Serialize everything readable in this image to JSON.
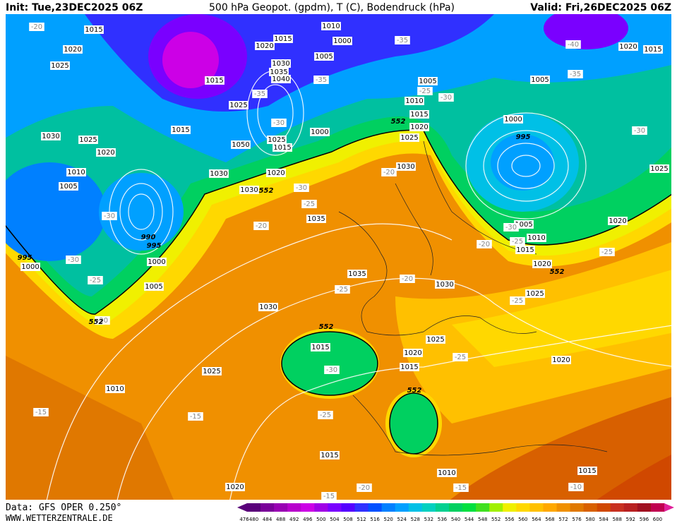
{
  "header": {
    "init": "Init: Tue,23DEC2025 06Z",
    "title": "500 hPa Geopot. (gpdm), T (C), Bodendruck (hPa)",
    "valid": "Valid: Fri,26DEC2025 06Z"
  },
  "footer": {
    "data": "Data: GFS OPER 0.250°",
    "site": "WWW.WETTERZENTRALE.DE"
  },
  "colorbar": {
    "ticks": [
      476,
      480,
      484,
      488,
      492,
      496,
      500,
      504,
      508,
      512,
      516,
      520,
      524,
      528,
      532,
      536,
      540,
      544,
      548,
      552,
      556,
      560,
      564,
      568,
      572,
      576,
      580,
      584,
      588,
      592,
      596,
      600
    ],
    "colors": [
      "#5a007a",
      "#7a0099",
      "#9900b3",
      "#b800cc",
      "#cc00e6",
      "#a000e6",
      "#7a00ff",
      "#5500ff",
      "#3030ff",
      "#0050ff",
      "#0080ff",
      "#00a0ff",
      "#00c0e6",
      "#00d0c0",
      "#00d090",
      "#00d060",
      "#00e040",
      "#40e020",
      "#a0f000",
      "#f0f000",
      "#ffd800",
      "#ffc000",
      "#ffa800",
      "#f09000",
      "#e07800",
      "#d86000",
      "#d04800",
      "#c83020",
      "#b82020",
      "#a01020",
      "#c00050"
    ]
  },
  "map_labels": [
    "-20",
    "1015",
    "1020",
    "1025",
    "1030",
    "1025",
    "1020",
    "1010",
    "1005",
    "-30",
    "995",
    "1000",
    "-30",
    "-25",
    "1005",
    "-20",
    "552",
    "1000",
    "995",
    "990",
    "1015",
    "1015",
    "1015",
    "1020",
    "1010",
    "1000",
    "1005",
    "-35",
    "-40",
    "1020",
    "1015",
    "-35",
    "1005",
    "1005",
    "-25",
    "-30",
    "1010",
    "1015",
    "1020",
    "552",
    "1025",
    "1030",
    "1035",
    "1040",
    "-35",
    "-35",
    "1025",
    "-30",
    "1000",
    "1050",
    "1025",
    "1015",
    "1030",
    "1020",
    "1030",
    "-20",
    "-30",
    "1030",
    "552",
    "-25",
    "1035",
    "-20",
    "1000",
    "995",
    "-30",
    "1025",
    "1005",
    "-30",
    "1010",
    "-25",
    "1015",
    "-20",
    "1020",
    "-25",
    "1020",
    "552",
    "1035",
    "-20",
    "1030",
    "-25",
    "1025",
    "-25",
    "1030",
    "552",
    "1015",
    "1020",
    "1025",
    "-25",
    "1015",
    "1020",
    "-30",
    "1025",
    "1010",
    "552",
    "-15",
    "-15",
    "-25",
    "1015",
    "1010",
    "-15",
    "1015",
    "-10",
    "1020",
    "-20",
    "-15"
  ]
}
